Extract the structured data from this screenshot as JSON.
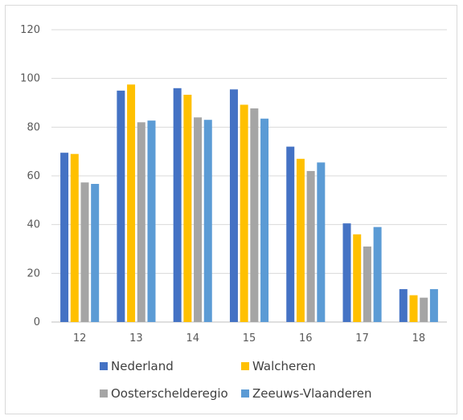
{
  "chart_data": {
    "type": "bar",
    "categories": [
      "12",
      "13",
      "14",
      "15",
      "16",
      "17",
      "18"
    ],
    "series": [
      {
        "name": "Nederland",
        "values": [
          69.5,
          95,
          96,
          95.5,
          72,
          40.5,
          13.5
        ]
      },
      {
        "name": "Walcheren",
        "values": [
          69,
          97.5,
          93.3,
          89.2,
          67,
          36,
          11
        ]
      },
      {
        "name": "Oosterschelderegio",
        "values": [
          57.3,
          82,
          84,
          87.7,
          62,
          31,
          10
        ]
      },
      {
        "name": "Zeeuws-Vlaanderen",
        "values": [
          56.7,
          82.7,
          83,
          83.5,
          65.5,
          39,
          13.5
        ]
      }
    ],
    "colors": [
      "#4472c4",
      "#ffc000",
      "#a5a5a5",
      "#5b9bd5"
    ],
    "ylim": [
      0,
      120
    ],
    "yticks": [
      "0",
      "20",
      "40",
      "60",
      "80",
      "100",
      "120"
    ],
    "grid": true,
    "legend_position": "bottom",
    "title": "",
    "xlabel": "",
    "ylabel": ""
  }
}
